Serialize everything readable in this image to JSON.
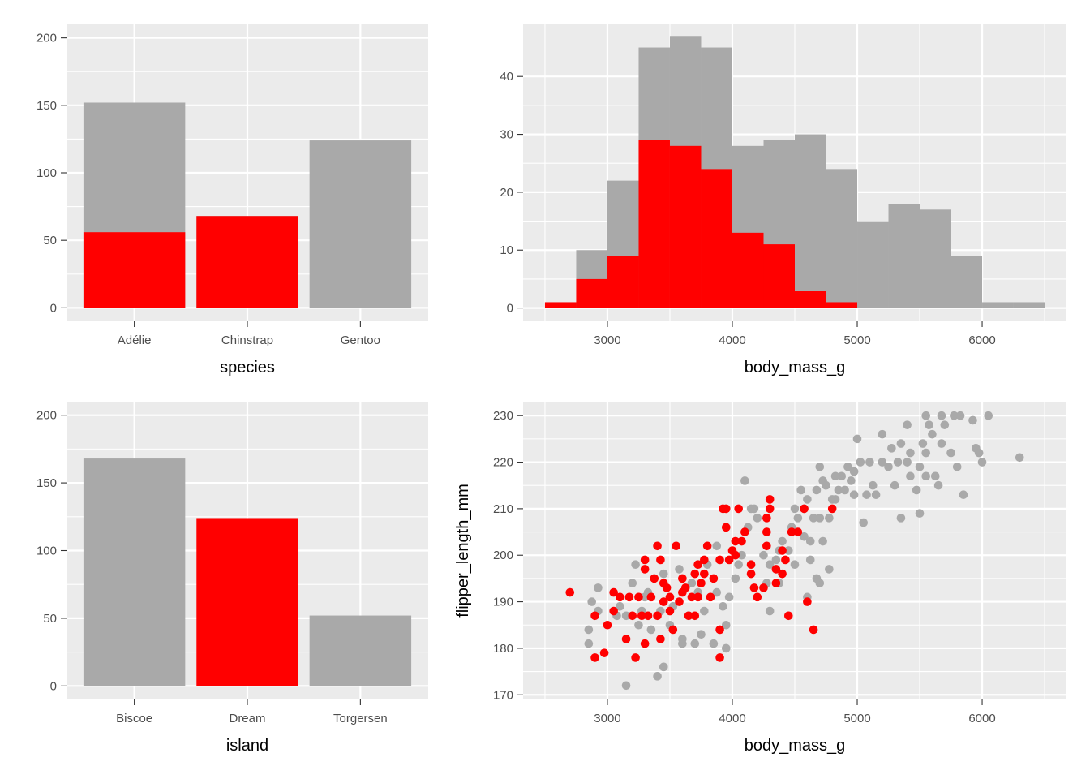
{
  "colors": {
    "panel_bg": "#EBEBEB",
    "grid": "#FFFFFF",
    "highlight": "#FF0000",
    "base": "#A9A9A9",
    "tick_text": "#4D4D4D"
  },
  "chart_data": [
    {
      "type": "bar",
      "xlabel": "species",
      "ylabel": "",
      "categories": [
        "Adélie",
        "Chinstrap",
        "Gentoo"
      ],
      "series": [
        {
          "color": "#A9A9A9",
          "values": [
            152,
            68,
            124
          ]
        },
        {
          "color": "#FF0000",
          "values": [
            56,
            68,
            0
          ]
        }
      ],
      "ylim": [
        0,
        200
      ],
      "yticks": [
        0,
        50,
        100,
        150,
        200
      ],
      "grid": true
    },
    {
      "type": "bar",
      "subtype": "histogram",
      "xlabel": "body_mass_g",
      "ylabel": "",
      "bin_start": 2500,
      "bin_width": 250,
      "series": [
        {
          "color": "#A9A9A9",
          "values": [
            1,
            10,
            22,
            45,
            47,
            45,
            28,
            29,
            30,
            24,
            15,
            18,
            17,
            9,
            1,
            1
          ]
        },
        {
          "color": "#FF0000",
          "values": [
            1,
            5,
            9,
            29,
            28,
            24,
            13,
            11,
            3,
            1,
            0,
            0,
            0,
            0,
            0,
            0
          ]
        }
      ],
      "xlim": [
        2325,
        6675
      ],
      "xticks": [
        3000,
        4000,
        5000,
        6000
      ],
      "ylim": [
        -2.3,
        49
      ],
      "yticks": [
        0,
        10,
        20,
        30,
        40
      ],
      "grid": true
    },
    {
      "type": "bar",
      "xlabel": "island",
      "ylabel": "",
      "categories": [
        "Biscoe",
        "Dream",
        "Torgersen"
      ],
      "series": [
        {
          "color": "#A9A9A9",
          "values": [
            168,
            0,
            52
          ]
        },
        {
          "color": "#FF0000",
          "values": [
            0,
            124,
            0
          ]
        }
      ],
      "ylim": [
        0,
        200
      ],
      "yticks": [
        0,
        50,
        100,
        150,
        200
      ],
      "grid": true
    },
    {
      "type": "scatter",
      "xlabel": "body_mass_g",
      "ylabel": "flipper_length_mm",
      "xlim": [
        2325,
        6675
      ],
      "xticks": [
        3000,
        4000,
        5000,
        6000
      ],
      "ylim": [
        169,
        233
      ],
      "yticks": [
        170,
        180,
        190,
        200,
        210,
        220,
        230
      ],
      "grid": true,
      "series": [
        {
          "color": "#A9A9A9",
          "points": [
            [
              2850,
              184
            ],
            [
              2850,
              181
            ],
            [
              2925,
              193
            ],
            [
              2925,
              188
            ],
            [
              2875,
              190
            ],
            [
              3075,
              187
            ],
            [
              3100,
              189
            ],
            [
              3150,
              187
            ],
            [
              3150,
              172
            ],
            [
              3200,
              194
            ],
            [
              3225,
              198
            ],
            [
              3250,
              185
            ],
            [
              3275,
              188
            ],
            [
              3300,
              191
            ],
            [
              3325,
              192
            ],
            [
              3350,
              184
            ],
            [
              3400,
              174
            ],
            [
              3425,
              188
            ],
            [
              3450,
              176
            ],
            [
              3450,
              196
            ],
            [
              3500,
              185
            ],
            [
              3525,
              189
            ],
            [
              3575,
              197
            ],
            [
              3600,
              181
            ],
            [
              3600,
              182
            ],
            [
              3650,
              187
            ],
            [
              3675,
              194
            ],
            [
              3700,
              181
            ],
            [
              3725,
              192
            ],
            [
              3750,
              183
            ],
            [
              3775,
              188
            ],
            [
              3800,
              198
            ],
            [
              3850,
              181
            ],
            [
              3875,
              202
            ],
            [
              3875,
              192
            ],
            [
              3925,
              189
            ],
            [
              3950,
              185
            ],
            [
              3950,
              180
            ],
            [
              3975,
              191
            ],
            [
              4025,
              195
            ],
            [
              4050,
              198
            ],
            [
              4075,
              200
            ],
            [
              4100,
              216
            ],
            [
              4125,
              206
            ],
            [
              4150,
              210
            ],
            [
              4175,
              210
            ],
            [
              4200,
              208
            ],
            [
              4250,
              200
            ],
            [
              4275,
              194
            ],
            [
              4300,
              198
            ],
            [
              4350,
              199
            ],
            [
              4375,
              201
            ],
            [
              4400,
              203
            ],
            [
              4450,
              201
            ],
            [
              4475,
              206
            ],
            [
              4500,
              210
            ],
            [
              4525,
              208
            ],
            [
              4550,
              214
            ],
            [
              4575,
              210
            ],
            [
              4600,
              212
            ],
            [
              4625,
              203
            ],
            [
              4650,
              208
            ],
            [
              4675,
              214
            ],
            [
              4700,
              208
            ],
            [
              4725,
              203
            ],
            [
              4700,
              219
            ],
            [
              4725,
              216
            ],
            [
              4750,
              215
            ],
            [
              4775,
              208
            ],
            [
              4800,
              212
            ],
            [
              4825,
              212
            ],
            [
              4850,
              214
            ],
            [
              4875,
              217
            ],
            [
              4900,
              214
            ],
            [
              4925,
              219
            ],
            [
              4950,
              216
            ],
            [
              4975,
              218
            ],
            [
              5000,
              225
            ],
            [
              5025,
              220
            ],
            [
              5050,
              207
            ],
            [
              5075,
              213
            ],
            [
              5100,
              220
            ],
            [
              5125,
              215
            ],
            [
              5150,
              213
            ],
            [
              5200,
              226
            ],
            [
              5200,
              220
            ],
            [
              5250,
              219
            ],
            [
              5275,
              223
            ],
            [
              5300,
              215
            ],
            [
              5325,
              220
            ],
            [
              5350,
              208
            ],
            [
              5350,
              224
            ],
            [
              5400,
              228
            ],
            [
              5400,
              220
            ],
            [
              5425,
              222
            ],
            [
              5425,
              217
            ],
            [
              5475,
              214
            ],
            [
              5500,
              219
            ],
            [
              5500,
              209
            ],
            [
              5525,
              224
            ],
            [
              5550,
              230
            ],
            [
              5550,
              222
            ],
            [
              5575,
              228
            ],
            [
              5600,
              226
            ],
            [
              5625,
              217
            ],
            [
              5650,
              215
            ],
            [
              5675,
              230
            ],
            [
              5675,
              224
            ],
            [
              5700,
              228
            ],
            [
              5750,
              222
            ],
            [
              5775,
              230
            ],
            [
              5800,
              219
            ],
            [
              5825,
              230
            ],
            [
              5850,
              213
            ],
            [
              5925,
              229
            ],
            [
              5950,
              223
            ],
            [
              5975,
              222
            ],
            [
              6000,
              220
            ],
            [
              6050,
              230
            ],
            [
              6300,
              221
            ],
            [
              5550,
              217
            ],
            [
              4975,
              213
            ],
            [
              4825,
              217
            ],
            [
              4575,
              204
            ],
            [
              4625,
              199
            ],
            [
              4700,
              194
            ],
            [
              4675,
              195
            ],
            [
              4775,
              197
            ],
            [
              4600,
              191
            ],
            [
              4500,
              198
            ],
            [
              4375,
              194
            ],
            [
              4300,
              188
            ]
          ]
        },
        {
          "color": "#FF0000",
          "points": [
            [
              2700,
              192
            ],
            [
              2900,
              187
            ],
            [
              2900,
              178
            ],
            [
              2975,
              179
            ],
            [
              3000,
              185
            ],
            [
              3050,
              192
            ],
            [
              3050,
              188
            ],
            [
              3150,
              182
            ],
            [
              3175,
              191
            ],
            [
              3200,
              187
            ],
            [
              3225,
              178
            ],
            [
              3250,
              191
            ],
            [
              3275,
              187
            ],
            [
              3300,
              181
            ],
            [
              3300,
              197
            ],
            [
              3300,
              199
            ],
            [
              3325,
              187
            ],
            [
              3350,
              191
            ],
            [
              3375,
              195
            ],
            [
              3400,
              202
            ],
            [
              3400,
              187
            ],
            [
              3425,
              199
            ],
            [
              3425,
              182
            ],
            [
              3450,
              190
            ],
            [
              3450,
              194
            ],
            [
              3475,
              193
            ],
            [
              3500,
              191
            ],
            [
              3500,
              188
            ],
            [
              3525,
              184
            ],
            [
              3550,
              202
            ],
            [
              3575,
              190
            ],
            [
              3600,
              195
            ],
            [
              3600,
              192
            ],
            [
              3625,
              193
            ],
            [
              3650,
              187
            ],
            [
              3675,
              191
            ],
            [
              3700,
              196
            ],
            [
              3700,
              187
            ],
            [
              3725,
              198
            ],
            [
              3725,
              191
            ],
            [
              3750,
              194
            ],
            [
              3775,
              196
            ],
            [
              3775,
              199
            ],
            [
              3800,
              202
            ],
            [
              3825,
              191
            ],
            [
              3850,
              195
            ],
            [
              3900,
              184
            ],
            [
              3900,
              178
            ],
            [
              3900,
              199
            ],
            [
              3925,
              210
            ],
            [
              3950,
              206
            ],
            [
              3950,
              210
            ],
            [
              3975,
              199
            ],
            [
              4000,
              201
            ],
            [
              4025,
              200
            ],
            [
              4025,
              203
            ],
            [
              4050,
              210
            ],
            [
              4075,
              203
            ],
            [
              4100,
              205
            ],
            [
              4150,
              198
            ],
            [
              4150,
              196
            ],
            [
              4175,
              193
            ],
            [
              4200,
              191
            ],
            [
              4250,
              193
            ],
            [
              4275,
              202
            ],
            [
              4275,
              205
            ],
            [
              4275,
              208
            ],
            [
              4300,
              212
            ],
            [
              4300,
              210
            ],
            [
              4350,
              194
            ],
            [
              4350,
              197
            ],
            [
              4400,
              196
            ],
            [
              4400,
              201
            ],
            [
              4425,
              199
            ],
            [
              4450,
              187
            ],
            [
              4475,
              205
            ],
            [
              4525,
              205
            ],
            [
              4575,
              210
            ],
            [
              4600,
              190
            ],
            [
              4650,
              184
            ],
            [
              4800,
              210
            ],
            [
              3100,
              191
            ]
          ]
        }
      ]
    }
  ]
}
